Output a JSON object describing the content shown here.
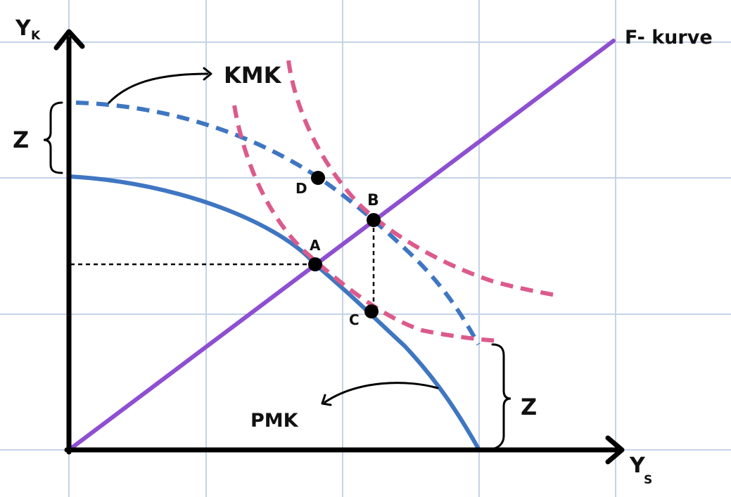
{
  "labels": {
    "y_axis": "Y",
    "y_axis_sub": "K",
    "x_axis": "Y",
    "x_axis_sub": "S",
    "f_curve": "F- kurve",
    "kmk": "KMK",
    "pmk": "PMK",
    "z_top": "Z",
    "z_bottom": "Z",
    "point_a": "A",
    "point_b": "B",
    "point_c": "C",
    "point_d": "D"
  },
  "colors": {
    "grid": "#c5d3e8",
    "axis": "#000000",
    "pmk": "#3f76c2",
    "kmk": "#3f76c2",
    "f_curve": "#8e4fd1",
    "indifference": "#dc5a8c",
    "point": "#000000"
  }
}
